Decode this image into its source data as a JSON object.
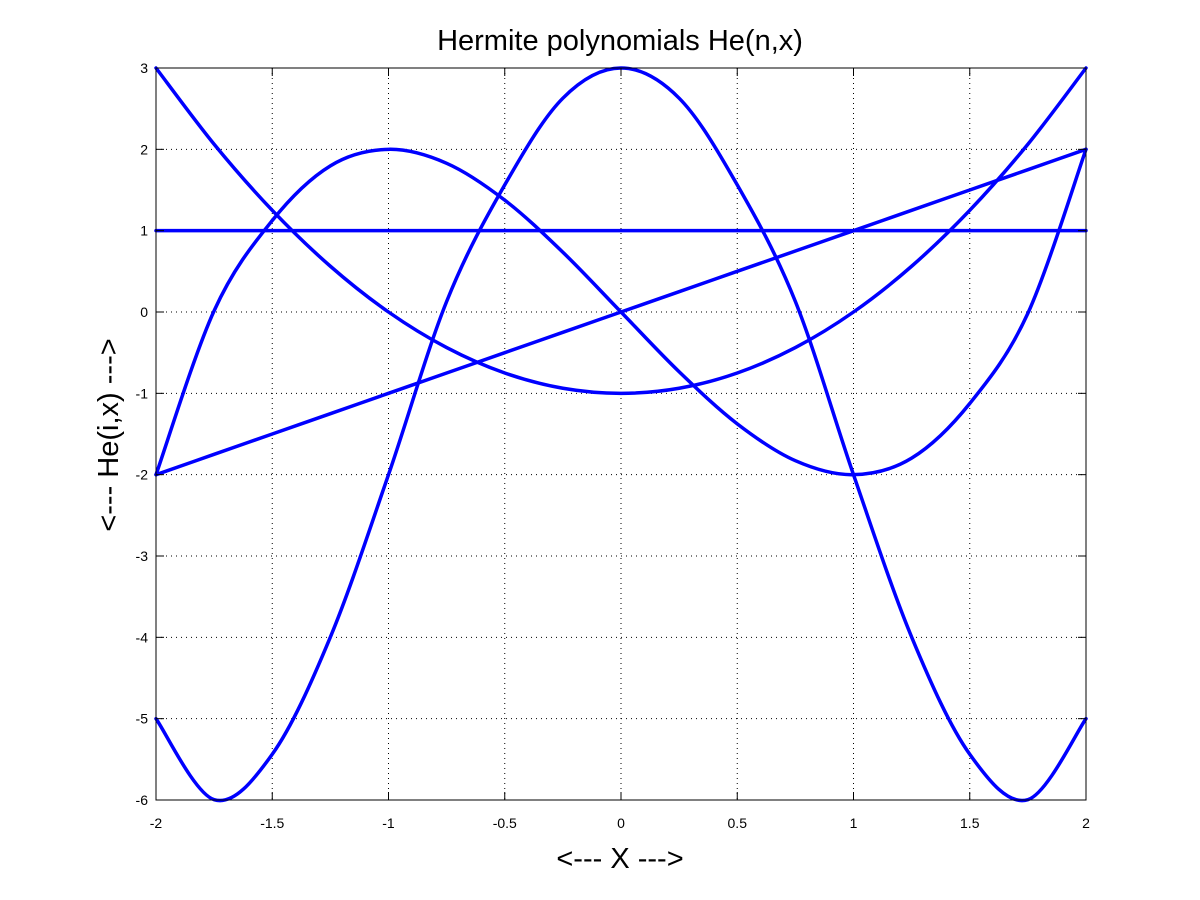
{
  "chart_data": {
    "type": "line",
    "title": "Hermite polynomials He(n,x)",
    "xlabel": "<--- X --->",
    "ylabel": "<--- He(i,x) --->",
    "xlim": [
      -2,
      2
    ],
    "ylim": [
      -6,
      3
    ],
    "x_ticks": [
      -2,
      -1.5,
      -1,
      -0.5,
      0,
      0.5,
      1,
      1.5,
      2
    ],
    "x_tick_labels": [
      "-2",
      "-1.5",
      "-1",
      "-0.5",
      "0",
      "0.5",
      "1",
      "1.5",
      "2"
    ],
    "y_ticks": [
      -6,
      -5,
      -4,
      -3,
      -2,
      -1,
      0,
      1,
      2,
      3
    ],
    "y_tick_labels": [
      "-6",
      "-5",
      "-4",
      "-3",
      "-2",
      "-1",
      "0",
      "1",
      "2",
      "3"
    ],
    "grid": true,
    "line_color": "#0000ff",
    "x": [
      -2,
      -1.75,
      -1.5,
      -1.25,
      -1,
      -0.75,
      -0.5,
      -0.25,
      0,
      0.25,
      0.5,
      0.75,
      1,
      1.25,
      1.5,
      1.75,
      2
    ],
    "series": [
      {
        "values": [
          1,
          1,
          1,
          1,
          1,
          1,
          1,
          1,
          1,
          1,
          1,
          1,
          1,
          1,
          1,
          1,
          1
        ]
      },
      {
        "values": [
          -2,
          -1.75,
          -1.5,
          -1.25,
          -1,
          -0.75,
          -0.5,
          -0.25,
          0,
          0.25,
          0.5,
          0.75,
          1,
          1.25,
          1.5,
          1.75,
          2
        ]
      },
      {
        "values": [
          3,
          2.0625,
          1.25,
          0.5625,
          0,
          -0.4375,
          -0.75,
          -0.9375,
          -1,
          -0.9375,
          -0.75,
          -0.4375,
          0,
          0.5625,
          1.25,
          2.0625,
          3
        ]
      },
      {
        "values": [
          -2,
          0.0156,
          1.125,
          1.7969,
          2,
          1.8281,
          1.375,
          0.7344,
          0,
          -0.7344,
          -1.375,
          -1.8281,
          -2,
          -1.7969,
          -1.125,
          -0.0156,
          2
        ]
      },
      {
        "values": [
          -5,
          -5.9961,
          -5.4375,
          -3.9961,
          -2,
          0.1289,
          1.5625,
          2.6289,
          3,
          2.6289,
          1.5625,
          0.1289,
          -2,
          -3.9961,
          -5.4375,
          -5.9961,
          -5
        ]
      }
    ]
  }
}
